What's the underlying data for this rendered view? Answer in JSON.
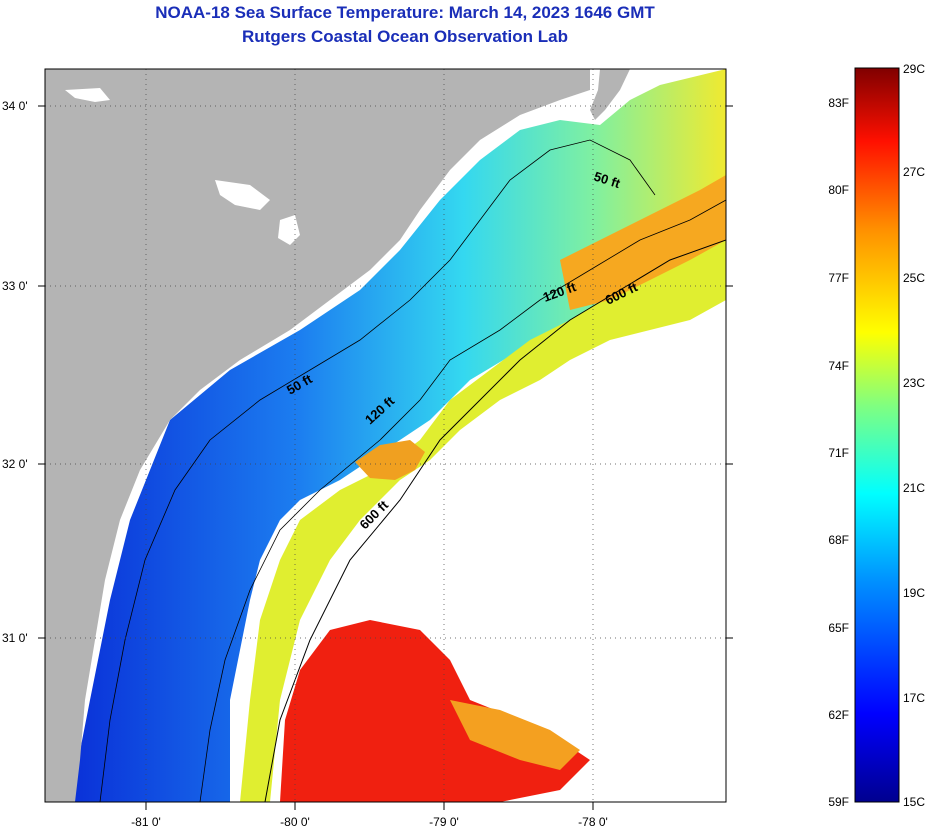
{
  "header": {
    "title_line1": "NOAA-18 Sea Surface Temperature:  March 14, 2023 1646 GMT",
    "title_line2": "Rutgers Coastal Ocean Observation Lab"
  },
  "map": {
    "longitude_labels": [
      "-81 0'",
      "-80 0'",
      "-79 0'",
      "-78 0'"
    ],
    "latitude_labels": [
      "34 0'",
      "33 0'",
      "32 0'",
      "31 0'"
    ],
    "contour_labels": [
      {
        "text": "50 ft",
        "id": "contour-50ft-north"
      },
      {
        "text": "50 ft",
        "id": "contour-50ft-south"
      },
      {
        "text": "120 ft",
        "id": "contour-120ft-north"
      },
      {
        "text": "120 ft",
        "id": "contour-120ft-south"
      },
      {
        "text": "600 ft",
        "id": "contour-600ft-north"
      },
      {
        "text": "600 ft",
        "id": "contour-600ft-south"
      }
    ],
    "colors": {
      "land": "#b4b4b4",
      "cloud": "#ffffff",
      "cold": "#0010c0",
      "warm": "#f01000"
    }
  },
  "colorbar": {
    "fahrenheit_labels": [
      "83F",
      "80F",
      "77F",
      "74F",
      "71F",
      "68F",
      "65F",
      "62F",
      "59F"
    ],
    "celsius_labels": [
      "29C",
      "27C",
      "25C",
      "23C",
      "21C",
      "19C",
      "17C",
      "15C"
    ]
  }
}
